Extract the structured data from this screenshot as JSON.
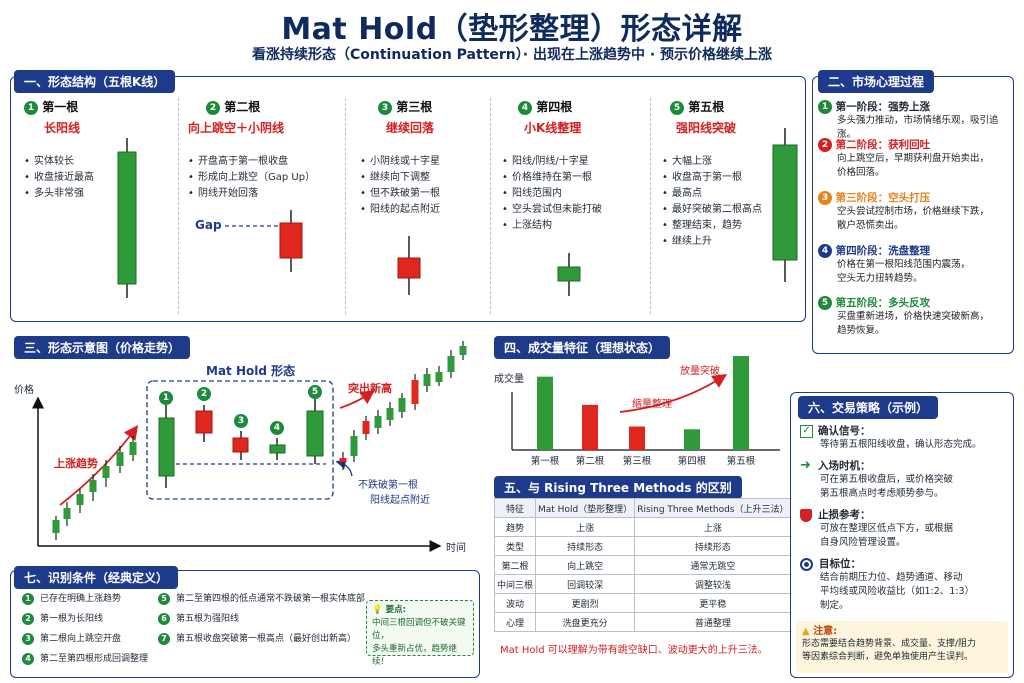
{
  "title": "Mat Hold（垫形整理）形态详解",
  "subtitle": "看涨持续形态（Continuation Pattern）· 出现在上涨趋势中 · 预示价格继续上涨",
  "colors": {
    "green": "#2e9a3a",
    "red": "#e0271d",
    "navy": "#1e3a8a",
    "orange": "#e8821e"
  },
  "s1": {
    "header": "一、形态结构（五根K线）",
    "cols": [
      {
        "num": "1",
        "title": "第一根",
        "sub": "长阳线",
        "bullets": [
          "实体较长",
          "收盘接近最高",
          "多头非常强"
        ]
      },
      {
        "num": "2",
        "title": "第二根",
        "sub": "向上跳空＋小阴线",
        "bullets": [
          "开盘高于第一根收盘",
          "形成向上跳空（Gap Up）",
          "阴线开始回落"
        ]
      },
      {
        "num": "3",
        "title": "第三根",
        "sub": "继续回落",
        "bullets": [
          "小阴线或十字星",
          "继续向下调整",
          "但不跌破第一根",
          "阳线的起点附近"
        ]
      },
      {
        "num": "4",
        "title": "第四根",
        "sub": "小K线整理",
        "bullets": [
          "阳线/阴线/十字星",
          "价格维持在第一根",
          "阳线范围内",
          "空头尝试但未能打破",
          "上涨结构"
        ]
      },
      {
        "num": "5",
        "title": "第五根",
        "sub": "强阳线突破",
        "bullets": [
          "大幅上涨",
          "收盘高于第一根",
          "最高点",
          "最好突破第二根高点",
          "整理结束，趋势",
          "继续上升"
        ]
      }
    ],
    "gap": "Gap"
  },
  "s2": {
    "header": "二、市场心理过程",
    "items": [
      {
        "num": "1",
        "title": "第一阶段：强势上涨",
        "desc": [
          "多头强力推动，市场情绪乐观，吸引追涨。"
        ],
        "color": "#111111"
      },
      {
        "num": "2",
        "title": "第二阶段：获利回吐",
        "desc": [
          "向上跳空后，早期获利盘开始卖出，",
          "价格回落。"
        ],
        "color": "#d42020"
      },
      {
        "num": "3",
        "title": "第三阶段：空头打压",
        "desc": [
          "空头尝试控制市场，价格继续下跌，",
          "散户恐慌卖出。"
        ],
        "color": "#e8821e"
      },
      {
        "num": "4",
        "title": "第四阶段：洗盘整理",
        "desc": [
          "价格在第一根阳线范围内震荡，",
          "空头无力扭转趋势。"
        ],
        "color": "#1e3a8a"
      },
      {
        "num": "5",
        "title": "第五阶段：多头反攻",
        "desc": [
          "买盘重新进场，价格快速突破新高，",
          "趋势恢复。"
        ],
        "color": "#1e8a3c"
      }
    ]
  },
  "s3": {
    "header": "三、形态示意图（价格走势）",
    "y_label": "价格",
    "x_label": "时间",
    "trend": "上涨趋势",
    "pattern_label": "Mat Hold 形态",
    "breakout": "突出新高",
    "support": [
      "不跌破第一根",
      "阳线起点附近"
    ],
    "nums": [
      "1",
      "2",
      "3",
      "4",
      "5"
    ]
  },
  "s4": {
    "header": "四、成交量特征（理想状态）",
    "y_label": "成交量",
    "shrink": "缩量整理",
    "expand": "放量突破",
    "chart_data": {
      "type": "bar",
      "categories": [
        "第一根",
        "第二根",
        "第三根",
        "第四根",
        "第五根"
      ],
      "values": [
        78,
        48,
        25,
        22,
        100
      ],
      "colors": [
        "#2e9a3a",
        "#e0271d",
        "#e0271d",
        "#2e9a3a",
        "#2e9a3a"
      ]
    }
  },
  "s5": {
    "header": "五、与 Rising Three Methods 的区别",
    "columns": [
      "特征",
      "Mat Hold（垫形整理）",
      "Rising Three Methods（上升三法）"
    ],
    "rows": [
      [
        "趋势",
        "上涨",
        "上涨"
      ],
      [
        "类型",
        "持续形态",
        "持续形态"
      ],
      [
        "第二根",
        "向上跳空",
        "通常无跳空"
      ],
      [
        "中间三根",
        "回调较深",
        "调整较浅"
      ],
      [
        "波动",
        "更剧烈",
        "更平稳"
      ],
      [
        "心理",
        "洗盘更充分",
        "普通整理"
      ]
    ],
    "note": "Mat Hold 可以理解为带有跳空缺口、波动更大的上升三法。"
  },
  "s6": {
    "header": "六、交易策略（示例）",
    "items": [
      {
        "icon": "checkbox-icon",
        "title": "确认信号：",
        "desc": [
          "等待第五根阳线收盘，确认形态完成。"
        ]
      },
      {
        "icon": "arrow-right-icon",
        "title": "入场时机：",
        "desc": [
          "可在第五根收盘后，或价格突破",
          "第五根高点时考虑顺势参与。"
        ]
      },
      {
        "icon": "shield-icon",
        "title": "止损参考：",
        "desc": [
          "可放在整理区低点下方，或根据",
          "自身风险管理设置。"
        ]
      },
      {
        "icon": "target-icon",
        "title": "目标位：",
        "desc": [
          "结合前期压力位、趋势通道、移动",
          "平均线或风险收益比（如1:2、1:3）",
          "制定。"
        ]
      }
    ],
    "warn_title": "注意:",
    "warn": [
      "形态需要结合趋势背景、成交量、支撑/阻力",
      "等因素综合判断，避免单独使用产生误判。"
    ]
  },
  "s7": {
    "header": "七、识别条件（经典定义）",
    "items": [
      {
        "num": "1",
        "text": "已存在明确上涨趋势"
      },
      {
        "num": "2",
        "text": "第一根为长阳线"
      },
      {
        "num": "3",
        "text": "第二根向上跳空开盘"
      },
      {
        "num": "4",
        "text": "第二至第四根形成回调整理"
      },
      {
        "num": "5",
        "text": "第二至第四根的低点通常不跌破第一根实体底部"
      },
      {
        "num": "6",
        "text": "第五根为强阳线"
      },
      {
        "num": "7",
        "text": "第五根收盘突破第一根高点（最好创出新高）"
      }
    ],
    "tip_title": "要点:",
    "tip": [
      "中间三根回调但不破关键位，",
      "多头重新占优，趋势继续！"
    ]
  }
}
